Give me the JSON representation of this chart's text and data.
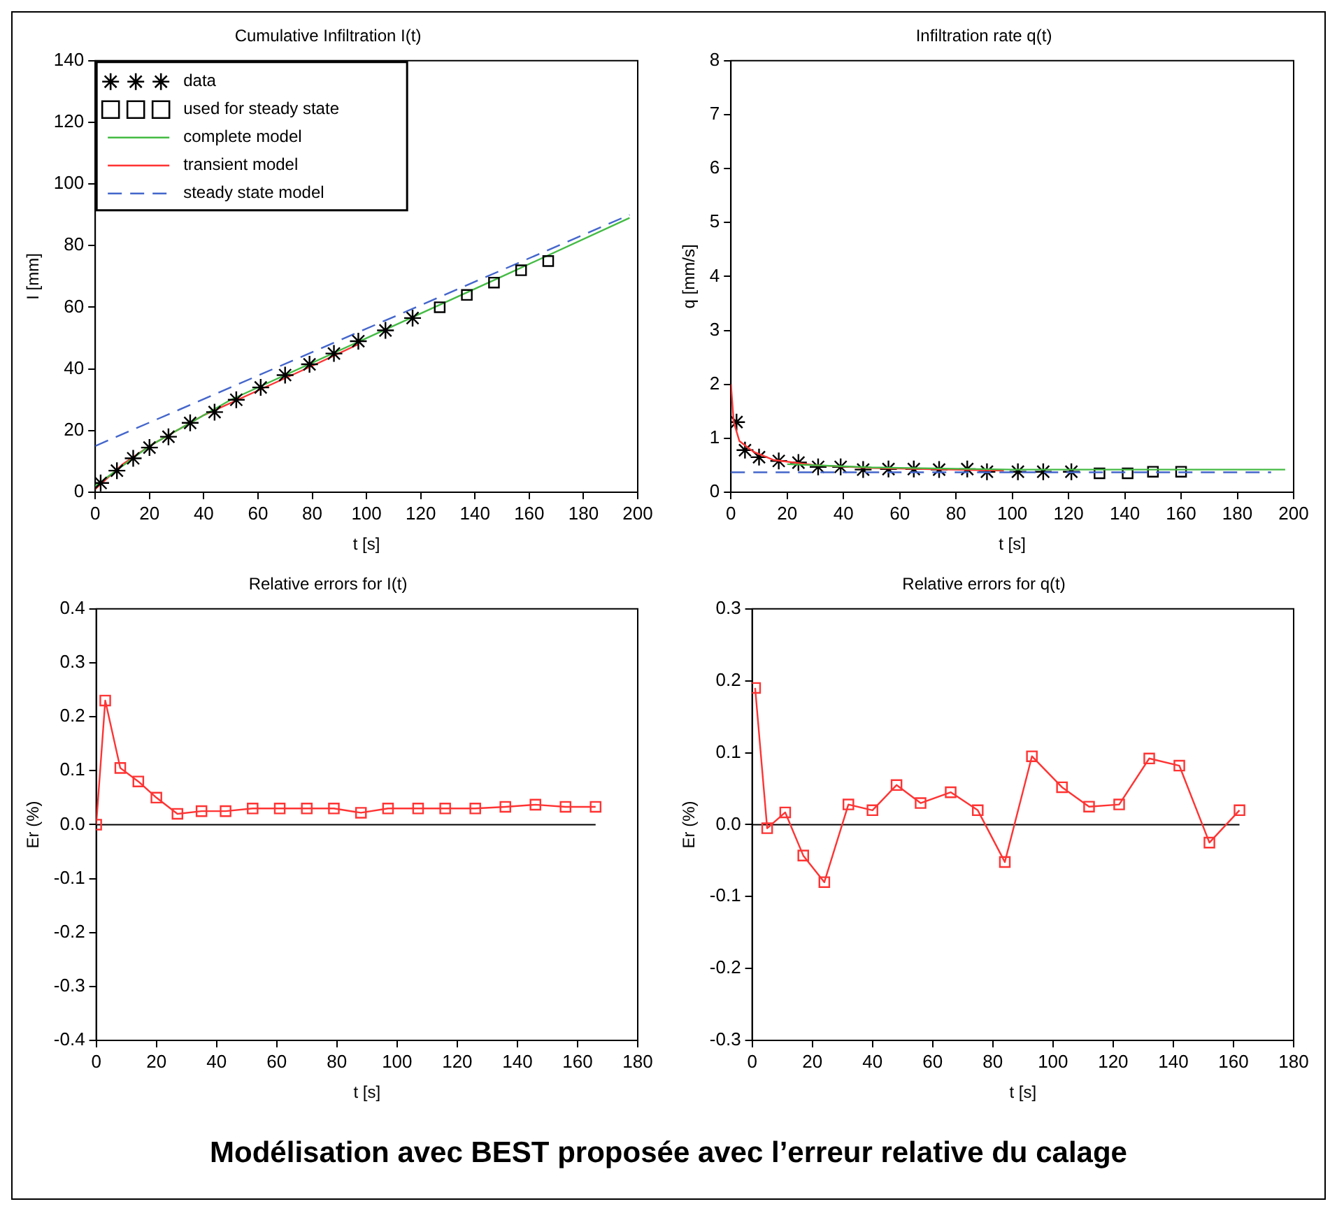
{
  "chart_data": [
    {
      "type": "line",
      "title": "Cumulative Infiltration I(t)",
      "xlabel": "t [s]",
      "ylabel": "I [mm]",
      "xlim": [
        0,
        200
      ],
      "xticks": [
        0,
        20,
        40,
        60,
        80,
        100,
        120,
        140,
        160,
        180,
        200
      ],
      "ylim": [
        0,
        140
      ],
      "yticks": [
        0,
        20,
        40,
        60,
        80,
        100,
        120,
        140
      ],
      "grid": false,
      "legend": "top left",
      "series": [
        {
          "name": "data",
          "type": "scatter",
          "marker": "cross",
          "color": "#000000",
          "x": [
            2,
            8,
            14,
            20,
            27,
            35,
            44,
            52,
            61,
            70,
            79,
            88,
            97,
            107,
            117
          ],
          "values": [
            3,
            7,
            11,
            14.5,
            18,
            22.5,
            26,
            30,
            34,
            38,
            41.5,
            45,
            49,
            52.5,
            56.5
          ]
        },
        {
          "name": "used for steady state",
          "type": "scatter",
          "marker": "square",
          "color": "#000000",
          "x": [
            127,
            137,
            147,
            157,
            167
          ],
          "values": [
            60,
            64,
            68,
            72,
            75
          ]
        },
        {
          "name": "complete model",
          "type": "line",
          "marker": "none",
          "line_style": "solid",
          "color": "#44bb44",
          "x": [
            0,
            20,
            50,
            100,
            150,
            197
          ],
          "values": [
            2,
            15,
            30,
            50,
            70,
            89
          ]
        },
        {
          "name": "transient model",
          "type": "line",
          "marker": "none",
          "line_style": "solid",
          "color": "#ff3333",
          "x": [
            0,
            10,
            20,
            40,
            60,
            80,
            97
          ],
          "values": [
            1,
            9,
            15,
            25,
            33,
            41,
            48
          ]
        },
        {
          "name": "steady state model",
          "type": "line",
          "marker": "none",
          "line_style": "dashed",
          "color": "#4466cc",
          "x": [
            0,
            197
          ],
          "values": [
            15,
            90
          ]
        }
      ]
    },
    {
      "type": "line",
      "title": "Infiltration rate q(t)",
      "xlabel": "t [s]",
      "ylabel": "q [mm/s]",
      "xlim": [
        0,
        200
      ],
      "xticks": [
        0,
        20,
        40,
        60,
        80,
        100,
        120,
        140,
        160,
        180,
        200
      ],
      "ylim": [
        0,
        8
      ],
      "yticks": [
        0,
        1,
        2,
        3,
        4,
        5,
        6,
        7,
        8
      ],
      "grid": false,
      "series": [
        {
          "type": "line",
          "marker": "none",
          "line_style": "dashed",
          "color": "#4466cc",
          "x": [
            0,
            192
          ],
          "values": [
            0.37,
            0.37
          ]
        },
        {
          "type": "line",
          "marker": "none",
          "line_style": "solid",
          "color": "#44bb44",
          "x": [
            20,
            50,
            100,
            197
          ],
          "values": [
            0.52,
            0.46,
            0.42,
            0.42
          ]
        },
        {
          "type": "line",
          "marker": "none",
          "line_style": "solid",
          "color": "#ff3333",
          "x": [
            0,
            1,
            3,
            8,
            15,
            30,
            50,
            97
          ],
          "values": [
            2,
            1.3,
            0.95,
            0.75,
            0.6,
            0.5,
            0.45,
            0.4
          ]
        },
        {
          "type": "scatter",
          "marker": "cross",
          "color": "#000000",
          "x": [
            2,
            5,
            10,
            17,
            24,
            31,
            39,
            47,
            56,
            65,
            74,
            84,
            91,
            102,
            111,
            121
          ],
          "values": [
            1.3,
            0.78,
            0.65,
            0.58,
            0.55,
            0.47,
            0.47,
            0.42,
            0.43,
            0.43,
            0.42,
            0.43,
            0.38,
            0.38,
            0.38,
            0.38
          ]
        },
        {
          "type": "scatter",
          "marker": "square",
          "color": "#000000",
          "x": [
            131,
            141,
            150,
            160
          ],
          "values": [
            0.35,
            0.35,
            0.38,
            0.38
          ]
        }
      ]
    },
    {
      "type": "line",
      "title": "Relative errors for I(t)",
      "xlabel": "t [s]",
      "ylabel": "Er (%)",
      "xlim": [
        0,
        180
      ],
      "xticks": [
        0,
        20,
        40,
        60,
        80,
        100,
        120,
        140,
        160,
        180
      ],
      "ylim": [
        -0.4,
        0.4
      ],
      "yticks": [
        -0.4,
        -0.3,
        -0.2,
        -0.1,
        {
          "value": 0,
          "label": "0.0"
        },
        0.1,
        0.2,
        0.3,
        0.4
      ],
      "grid": false,
      "ref_lines": [
        {
          "axis": "y",
          "value": 0,
          "color": "#000000"
        }
      ],
      "series": [
        {
          "type": "line",
          "marker": "square",
          "line_style": "solid",
          "color": "#ff3333",
          "x": [
            0,
            3,
            8,
            14,
            20,
            27,
            35,
            43,
            52,
            61,
            70,
            79,
            88,
            97,
            107,
            116,
            126,
            136,
            146,
            156,
            166
          ],
          "values": [
            0,
            0.23,
            0.105,
            0.08,
            0.05,
            0.02,
            0.025,
            0.025,
            0.03,
            0.03,
            0.03,
            0.03,
            0.022,
            0.03,
            0.03,
            0.03,
            0.03,
            0.033,
            0.037,
            0.033,
            0.033
          ]
        }
      ]
    },
    {
      "type": "line",
      "title": "Relative errors for q(t)",
      "xlabel": "t [s]",
      "ylabel": "Er (%)",
      "xlim": [
        0,
        180
      ],
      "xticks": [
        0,
        20,
        40,
        60,
        80,
        100,
        120,
        140,
        160,
        180
      ],
      "ylim": [
        -0.3,
        0.3
      ],
      "yticks": [
        -0.3,
        -0.2,
        -0.1,
        {
          "value": 0,
          "label": "0.0"
        },
        0.1,
        0.2,
        0.3
      ],
      "grid": false,
      "ref_lines": [
        {
          "axis": "y",
          "value": 0,
          "color": "#000000"
        }
      ],
      "annotations": [
        "Modélisation avec BEST proposée avec l’erreur relative du calage"
      ],
      "series": [
        {
          "type": "line",
          "marker": "square",
          "line_style": "solid",
          "color": "#ff3333",
          "x": [
            1,
            5,
            11,
            17,
            24,
            32,
            40,
            48,
            56,
            66,
            75,
            84,
            93,
            103,
            112,
            122,
            132,
            142,
            152,
            162
          ],
          "values": [
            0.19,
            -0.005,
            0.017,
            -0.043,
            -0.08,
            0.028,
            0.02,
            0.055,
            0.03,
            0.045,
            0.02,
            -0.052,
            0.095,
            0.052,
            0.025,
            0.028,
            0.092,
            0.082,
            -0.025,
            0.02
          ]
        }
      ]
    }
  ]
}
